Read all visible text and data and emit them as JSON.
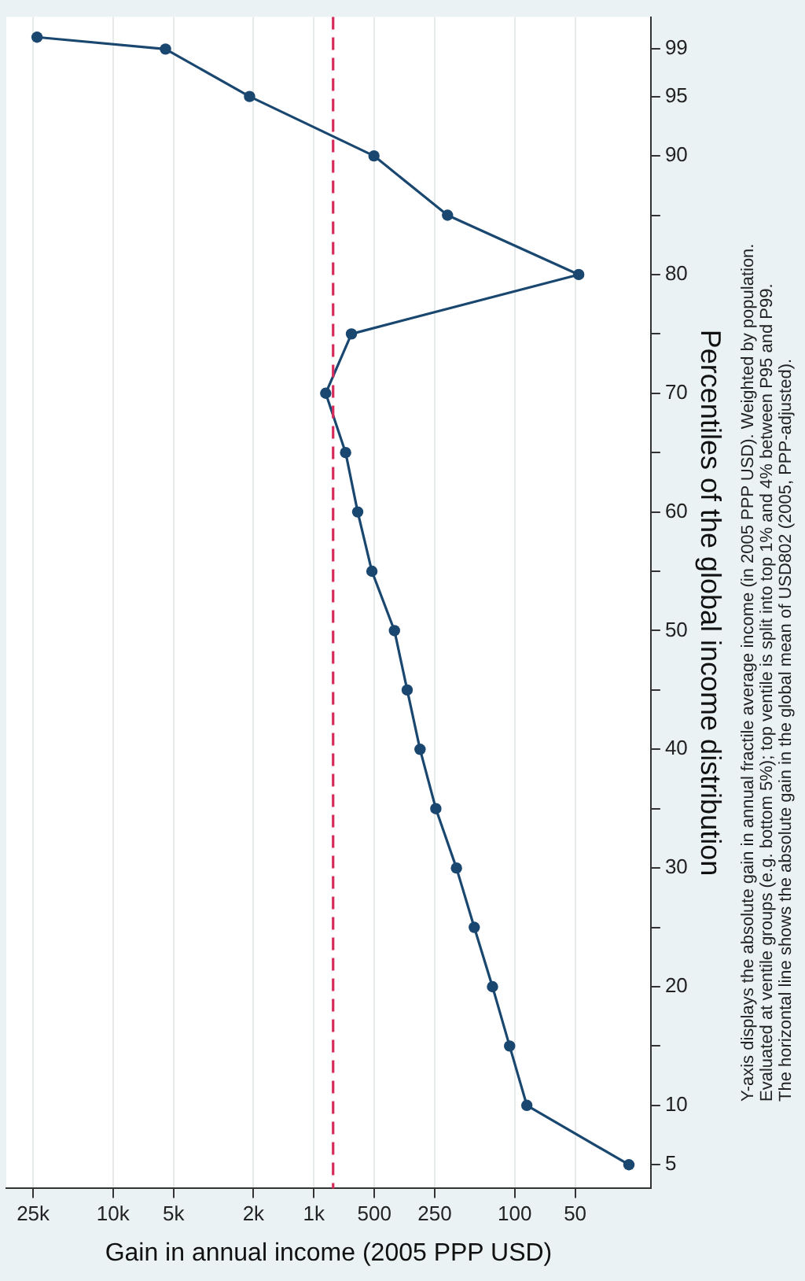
{
  "chart_data": {
    "type": "line",
    "xlabel": "Gain in annual income (2005 PPP USD)",
    "ylabel": "Percentiles of the global income distribution",
    "x": [
      27,
      87,
      106,
      129,
      159,
      195,
      247,
      296,
      343,
      397,
      514,
      605,
      695,
      873,
      650,
      48,
      216,
      502,
      2090,
      5480,
      23900
    ],
    "series": [
      {
        "color": "#1a476f",
        "values": [
          5,
          10,
          15,
          20,
          25,
          30,
          35,
          40,
          45,
          50,
          55,
          60,
          65,
          70,
          75,
          80,
          85,
          90,
          95,
          99,
          100
        ]
      }
    ],
    "log": "x",
    "xlim": [
      34000,
      21
    ],
    "ylim": [
      3,
      101.7
    ],
    "yticks": [
      5,
      10,
      {
        "value": 15,
        "label": null
      },
      20,
      {
        "value": 25,
        "label": null
      },
      30,
      {
        "value": 35,
        "label": null
      },
      40,
      {
        "value": 45,
        "label": null
      },
      50,
      {
        "value": 55,
        "label": null
      },
      60,
      {
        "value": 65,
        "label": null
      },
      70,
      {
        "value": 75,
        "label": null
      },
      80,
      {
        "value": 85,
        "label": null
      },
      90,
      95,
      99
    ],
    "xticks": [
      {
        "value": 50,
        "label": "50"
      },
      {
        "value": 100,
        "label": "100"
      },
      {
        "value": 250,
        "label": "250"
      },
      {
        "value": 500,
        "label": "500"
      },
      {
        "value": 1000,
        "label": "1k"
      },
      {
        "value": 2000,
        "label": "2k"
      },
      {
        "value": 5000,
        "label": "5k"
      },
      {
        "value": 10000,
        "label": "10k"
      },
      {
        "value": 25000,
        "label": "25k"
      }
    ],
    "ref_lines": [
      {
        "axis": "x",
        "value": 802,
        "color": "#d62b5a",
        "line_style": "dashed"
      }
    ],
    "grid": "x",
    "legend": false,
    "marker": "circle",
    "line_style": "solid",
    "annotations": [
      "Y-axis displays the absolute gain in annual fractile average income (in 2005 PPP USD). Weighted by population.",
      "Evaluated at ventile groups (e.g. bottom 5%); top ventile is split into top 1% and 4% between P95 and P99.",
      "The horizontal line shows the absolute gain in the global mean of USD802 (2005, PPP-adjusted)."
    ]
  }
}
